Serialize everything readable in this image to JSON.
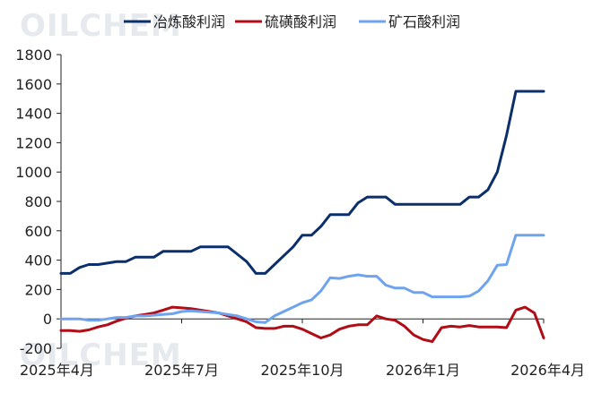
{
  "watermark": "OILCHEM",
  "colors": {
    "smelting": "#0b2f6b",
    "sulfur": "#b00d16",
    "ore": "#6fa3ee",
    "axis": "#222222"
  },
  "chart_data": {
    "type": "line",
    "title": "",
    "xlabel": "",
    "ylabel": "",
    "ylim": [
      -200,
      1800
    ],
    "yticks": [
      -200,
      0,
      200,
      400,
      600,
      800,
      1000,
      1200,
      1400,
      1600,
      1800
    ],
    "xlim": [
      0,
      52
    ],
    "xticks": [
      {
        "pos": 0,
        "label": "2025年4月"
      },
      {
        "pos": 13,
        "label": "2025年7月"
      },
      {
        "pos": 26,
        "label": "2025年10月"
      },
      {
        "pos": 39,
        "label": "2026年1月"
      },
      {
        "pos": 52,
        "label": "2026年4月"
      }
    ],
    "legend_position": "top",
    "grid": false,
    "series": [
      {
        "name": "冶炼酸利润",
        "color": "#0b2f6b",
        "x": [
          0,
          1,
          2,
          3,
          4,
          5,
          6,
          7,
          8,
          9,
          10,
          11,
          12,
          13,
          14,
          15,
          16,
          17,
          18,
          19,
          20,
          21,
          22,
          23,
          24,
          25,
          26,
          27,
          28,
          29,
          30,
          31,
          32,
          33,
          34,
          35,
          36,
          37,
          38,
          39,
          40,
          41,
          42,
          43,
          44,
          45,
          46,
          47,
          48,
          49,
          50,
          51,
          52
        ],
        "values": [
          310,
          310,
          350,
          370,
          370,
          380,
          390,
          390,
          420,
          420,
          420,
          460,
          460,
          460,
          460,
          490,
          490,
          490,
          490,
          440,
          390,
          310,
          310,
          370,
          430,
          490,
          570,
          570,
          630,
          710,
          710,
          710,
          790,
          830,
          830,
          830,
          780,
          780,
          780,
          780,
          780,
          780,
          780,
          780,
          830,
          830,
          880,
          1000,
          1250,
          1550,
          1550,
          1550,
          1550
        ]
      },
      {
        "name": "硫磺酸利润",
        "color": "#b00d16",
        "x": [
          0,
          1,
          2,
          3,
          4,
          5,
          6,
          7,
          8,
          9,
          10,
          11,
          12,
          13,
          14,
          15,
          16,
          17,
          18,
          19,
          20,
          21,
          22,
          23,
          24,
          25,
          26,
          27,
          28,
          29,
          30,
          31,
          32,
          33,
          34,
          35,
          36,
          37,
          38,
          39,
          40,
          41,
          42,
          43,
          44,
          45,
          46,
          47,
          48,
          49,
          50,
          51,
          52
        ],
        "values": [
          -80,
          -80,
          -85,
          -75,
          -55,
          -40,
          -15,
          5,
          20,
          30,
          40,
          60,
          80,
          75,
          70,
          60,
          50,
          40,
          20,
          0,
          -20,
          -60,
          -65,
          -65,
          -50,
          -50,
          -70,
          -100,
          -130,
          -110,
          -70,
          -50,
          -40,
          -40,
          20,
          0,
          -10,
          -50,
          -110,
          -140,
          -155,
          -60,
          -50,
          -55,
          -45,
          -55,
          -55,
          -55,
          -60,
          60,
          80,
          40,
          -130
        ]
      },
      {
        "name": "矿石酸利润",
        "color": "#6fa3ee",
        "x": [
          0,
          1,
          2,
          3,
          4,
          5,
          6,
          7,
          8,
          9,
          10,
          11,
          12,
          13,
          14,
          15,
          16,
          17,
          18,
          19,
          20,
          21,
          22,
          23,
          24,
          25,
          26,
          27,
          28,
          29,
          30,
          31,
          32,
          33,
          34,
          35,
          36,
          37,
          38,
          39,
          40,
          41,
          42,
          43,
          44,
          45,
          46,
          47,
          48,
          49,
          50,
          51,
          52
        ],
        "values": [
          0,
          0,
          0,
          -10,
          -10,
          0,
          10,
          10,
          20,
          20,
          25,
          30,
          35,
          50,
          55,
          50,
          45,
          40,
          30,
          20,
          0,
          -20,
          -25,
          20,
          50,
          80,
          110,
          130,
          190,
          280,
          275,
          290,
          300,
          290,
          290,
          230,
          210,
          210,
          180,
          180,
          150,
          150,
          150,
          150,
          155,
          190,
          260,
          365,
          370,
          570,
          570,
          570,
          570
        ]
      }
    ]
  }
}
